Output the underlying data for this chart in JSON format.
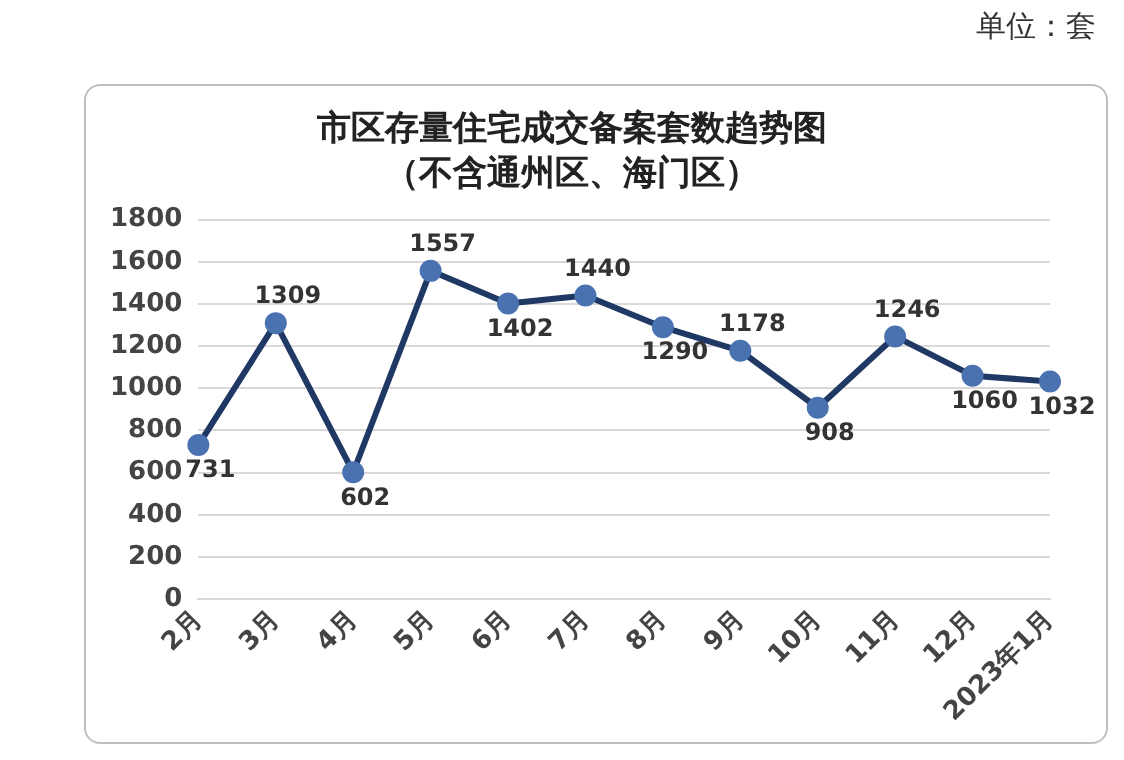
{
  "chart_data": {
    "type": "line",
    "title": "市区存量住宅成交备案套数趋势图",
    "subtitle": "（不含通州区、海门区）",
    "annotations": [
      "单位：套"
    ],
    "categories": [
      "2月",
      "3月",
      "4月",
      "5月",
      "6月",
      "7月",
      "8月",
      "9月",
      "10月",
      "11月",
      "12月",
      "2023年1月"
    ],
    "series": [
      {
        "color": "#1f3864",
        "values": [
          731,
          1309,
          602,
          1557,
          1402,
          1440,
          1290,
          1178,
          908,
          1246,
          1060,
          1032
        ]
      }
    ],
    "ylim": [
      0,
      1800
    ],
    "yticks": [
      0,
      200,
      400,
      600,
      800,
      1000,
      1200,
      1400,
      1600,
      1800
    ],
    "grid": "y",
    "legend": false,
    "marker": "circle",
    "line_style": "solid",
    "data_labels": true
  }
}
